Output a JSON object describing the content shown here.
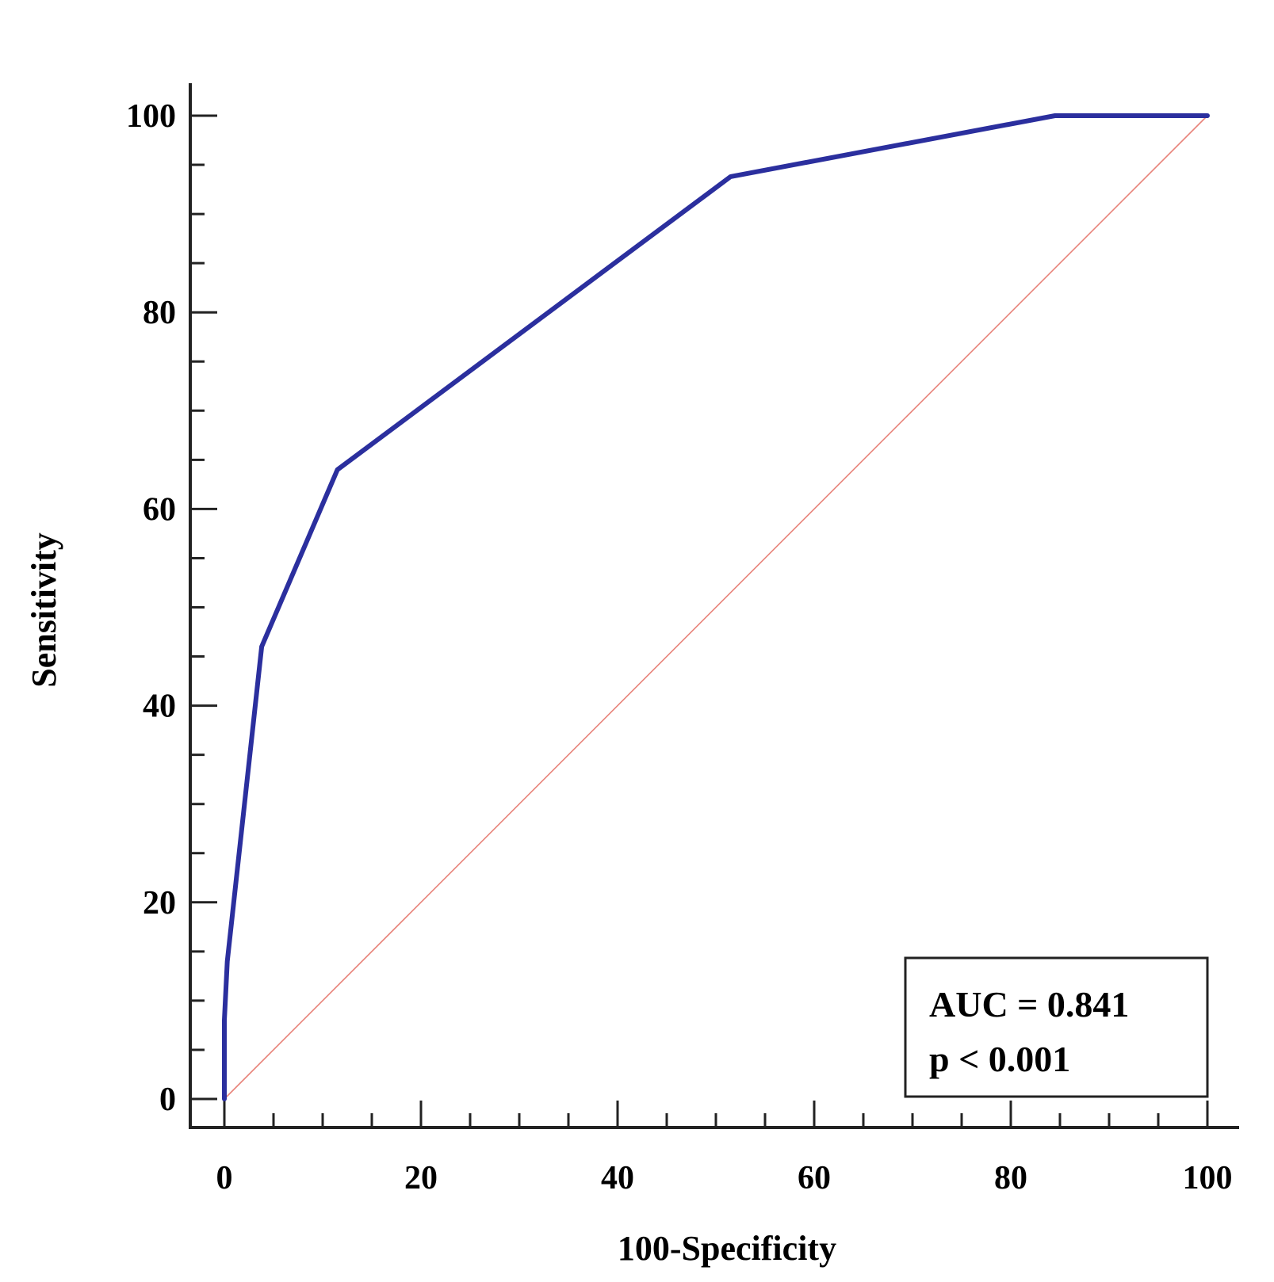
{
  "chart_data": {
    "type": "line",
    "xlabel": "100-Specificity",
    "ylabel": "Sensitivity",
    "xlim": [
      0,
      100
    ],
    "ylim": [
      0,
      100
    ],
    "x_ticks": [
      "0",
      "20",
      "40",
      "60",
      "80",
      "100"
    ],
    "y_ticks": [
      "0",
      "20",
      "40",
      "60",
      "80",
      "100"
    ],
    "minor_tick_step": 5,
    "grid": false,
    "legend": "none",
    "series": [
      {
        "color": "#2b2f9e",
        "points": [
          [
            0,
            0
          ],
          [
            0,
            8
          ],
          [
            0.3,
            14
          ],
          [
            3.8,
            46
          ],
          [
            11.5,
            64
          ],
          [
            51.5,
            93.8
          ],
          [
            84.5,
            100
          ],
          [
            100,
            100
          ]
        ]
      },
      {
        "color": "#e8837a",
        "points": [
          [
            0,
            0
          ],
          [
            100,
            100
          ]
        ]
      }
    ],
    "annotation": {
      "lines": [
        "AUC = 0.841",
        "p < 0.001"
      ],
      "placement": "bottom-right"
    }
  }
}
